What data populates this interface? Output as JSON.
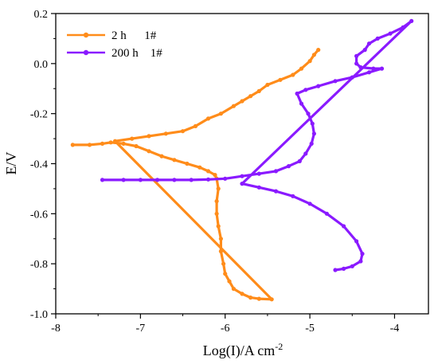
{
  "chart_data": {
    "type": "scatter",
    "title": "",
    "xlabel_main": "Log(I)/A cm",
    "xlabel_sup": "-2",
    "ylabel": "E/V",
    "xlim": [
      -8,
      -3.6
    ],
    "ylim": [
      -1.0,
      0.2
    ],
    "xticks": [
      {
        "v": -8,
        "label": "-8"
      },
      {
        "v": -7,
        "label": "-7"
      },
      {
        "v": -6,
        "label": "-6"
      },
      {
        "v": -5,
        "label": "-5"
      },
      {
        "v": -4,
        "label": "-4"
      }
    ],
    "yticks": [
      {
        "v": 0.2,
        "label": "0.2"
      },
      {
        "v": 0.0,
        "label": "0.0"
      },
      {
        "v": -0.2,
        "label": "-0.2"
      },
      {
        "v": -0.4,
        "label": "-0.4"
      },
      {
        "v": -0.6,
        "label": "-0.6"
      },
      {
        "v": -0.8,
        "label": "-0.8"
      },
      {
        "v": -1.0,
        "label": "-1.0"
      }
    ],
    "legend_position": "top-left",
    "series": [
      {
        "name": "2 h      1#",
        "color": "#ff8c1a",
        "points": [
          [
            -7.8,
            -0.325
          ],
          [
            -7.6,
            -0.325
          ],
          [
            -7.45,
            -0.32
          ],
          [
            -7.35,
            -0.315
          ],
          [
            -7.2,
            -0.32
          ],
          [
            -7.05,
            -0.33
          ],
          [
            -6.9,
            -0.35
          ],
          [
            -6.75,
            -0.37
          ],
          [
            -6.6,
            -0.385
          ],
          [
            -6.45,
            -0.4
          ],
          [
            -6.3,
            -0.415
          ],
          [
            -6.2,
            -0.43
          ],
          [
            -6.12,
            -0.445
          ],
          [
            -6.1,
            -0.46
          ],
          [
            -6.08,
            -0.5
          ],
          [
            -6.1,
            -0.55
          ],
          [
            -6.1,
            -0.6
          ],
          [
            -6.08,
            -0.65
          ],
          [
            -6.05,
            -0.7
          ],
          [
            -6.05,
            -0.75
          ],
          [
            -6.02,
            -0.8
          ],
          [
            -6.0,
            -0.84
          ],
          [
            -5.95,
            -0.87
          ],
          [
            -5.9,
            -0.9
          ],
          [
            -5.8,
            -0.92
          ],
          [
            -5.7,
            -0.935
          ],
          [
            -5.6,
            -0.94
          ],
          [
            -5.45,
            -0.942
          ],
          [
            -7.3,
            -0.31
          ],
          [
            -7.1,
            -0.3
          ],
          [
            -6.9,
            -0.29
          ],
          [
            -6.7,
            -0.28
          ],
          [
            -6.5,
            -0.27
          ],
          [
            -6.35,
            -0.25
          ],
          [
            -6.2,
            -0.22
          ],
          [
            -6.05,
            -0.2
          ],
          [
            -5.9,
            -0.17
          ],
          [
            -5.8,
            -0.15
          ],
          [
            -5.7,
            -0.13
          ],
          [
            -5.6,
            -0.11
          ],
          [
            -5.5,
            -0.085
          ],
          [
            -5.35,
            -0.065
          ],
          [
            -5.2,
            -0.045
          ],
          [
            -5.1,
            -0.02
          ],
          [
            -5.0,
            0.01
          ],
          [
            -4.95,
            0.035
          ],
          [
            -4.9,
            0.055
          ]
        ]
      },
      {
        "name": "200 h    1#",
        "color": "#8a1aff",
        "points": [
          [
            -7.45,
            -0.465
          ],
          [
            -7.2,
            -0.465
          ],
          [
            -7.0,
            -0.465
          ],
          [
            -6.8,
            -0.465
          ],
          [
            -6.6,
            -0.465
          ],
          [
            -6.4,
            -0.465
          ],
          [
            -6.2,
            -0.463
          ],
          [
            -6.0,
            -0.46
          ],
          [
            -5.8,
            -0.45
          ],
          [
            -5.6,
            -0.44
          ],
          [
            -5.4,
            -0.43
          ],
          [
            -5.25,
            -0.41
          ],
          [
            -5.12,
            -0.39
          ],
          [
            -5.05,
            -0.36
          ],
          [
            -4.98,
            -0.32
          ],
          [
            -4.95,
            -0.28
          ],
          [
            -4.97,
            -0.24
          ],
          [
            -5.02,
            -0.2
          ],
          [
            -5.1,
            -0.16
          ],
          [
            -5.15,
            -0.12
          ],
          [
            -5.05,
            -0.105
          ],
          [
            -4.9,
            -0.09
          ],
          [
            -4.7,
            -0.07
          ],
          [
            -4.5,
            -0.055
          ],
          [
            -4.3,
            -0.035
          ],
          [
            -4.15,
            -0.02
          ],
          [
            -4.25,
            -0.02
          ],
          [
            -4.4,
            -0.015
          ],
          [
            -4.45,
            0.0
          ],
          [
            -4.45,
            0.03
          ],
          [
            -4.35,
            0.055
          ],
          [
            -4.3,
            0.08
          ],
          [
            -4.2,
            0.1
          ],
          [
            -4.05,
            0.12
          ],
          [
            -3.9,
            0.145
          ],
          [
            -3.8,
            0.17
          ],
          [
            -5.8,
            -0.48
          ],
          [
            -5.6,
            -0.495
          ],
          [
            -5.4,
            -0.51
          ],
          [
            -5.2,
            -0.53
          ],
          [
            -5.0,
            -0.56
          ],
          [
            -4.8,
            -0.6
          ],
          [
            -4.6,
            -0.65
          ],
          [
            -4.45,
            -0.71
          ],
          [
            -4.38,
            -0.76
          ],
          [
            -4.4,
            -0.79
          ],
          [
            -4.5,
            -0.81
          ],
          [
            -4.6,
            -0.82
          ],
          [
            -4.7,
            -0.825
          ]
        ]
      }
    ]
  }
}
